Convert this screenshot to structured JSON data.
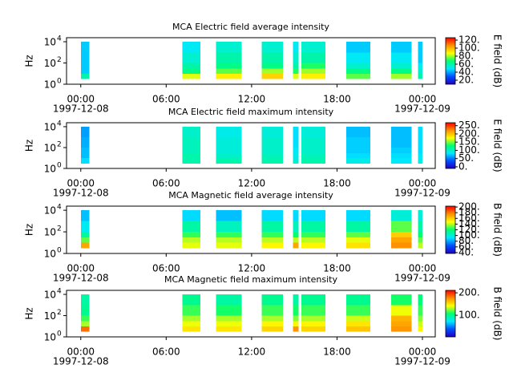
{
  "chart_data": [
    {
      "type": "spectrogram",
      "title": "MCA  Electric field average intensity",
      "ylabel": "Hz",
      "clabel": "E field (dB)",
      "xlim": [
        -1,
        24.9
      ],
      "xticks": [
        {
          "value": 0,
          "label": "00:00",
          "date": "1997-12-08"
        },
        {
          "value": 6,
          "label": "06:00"
        },
        {
          "value": 12,
          "label": "12:00"
        },
        {
          "value": 18,
          "label": "18:00"
        },
        {
          "value": 24,
          "label": "00:00",
          "date": "1997-12-09"
        }
      ],
      "ylim": [
        1,
        24000
      ],
      "log_y": true,
      "yticks": [
        {
          "value": 1,
          "label": "10",
          "exp": "0"
        },
        {
          "value": 100,
          "label": "10",
          "exp": "2"
        },
        {
          "value": 10000,
          "label": "10",
          "exp": "4"
        }
      ],
      "clim": [
        10,
        126
      ],
      "cticks": [
        {
          "value": 20,
          "label": "20."
        },
        {
          "value": 40,
          "label": "40."
        },
        {
          "value": 60,
          "label": "60."
        },
        {
          "value": 80,
          "label": "80."
        },
        {
          "value": 100,
          "label": "100."
        },
        {
          "value": 120,
          "label": "120."
        }
      ],
      "colormap": [
        "#2000c0",
        "#0050ff",
        "#00e8ff",
        "#00ff70",
        "#ffff00",
        "#ff9000",
        "#ff0000"
      ],
      "time_bins": [
        [
          0,
          0.6
        ],
        [
          7.15,
          8.4
        ],
        [
          9.5,
          11.3
        ],
        [
          12.7,
          14.2
        ],
        [
          14.9,
          15.3
        ],
        [
          15.5,
          17.2
        ],
        [
          18.65,
          20.35
        ],
        [
          21.8,
          23.25
        ],
        [
          23.7,
          24
        ]
      ],
      "freq_bins": [
        3,
        10,
        30,
        100,
        1000,
        10000
      ],
      "z": [
        [
          60,
          45,
          45,
          45,
          45
        ],
        [
          85,
          65,
          60,
          55,
          50
        ],
        [
          90,
          75,
          65,
          60,
          55
        ],
        [
          95,
          80,
          65,
          60,
          55
        ],
        [
          85,
          70,
          60,
          55,
          50
        ],
        [
          90,
          80,
          70,
          60,
          55
        ],
        [
          75,
          65,
          55,
          50,
          45
        ],
        [
          80,
          65,
          55,
          50,
          45
        ],
        [
          60,
          55,
          50,
          45,
          45
        ]
      ]
    },
    {
      "type": "spectrogram",
      "title": "MCA  Electric field maximum intensity",
      "ylabel": "Hz",
      "clabel": "E field (dB)",
      "xlim": [
        -1,
        24.9
      ],
      "xticks": [
        {
          "value": 0,
          "label": "00:00",
          "date": "1997-12-08"
        },
        {
          "value": 6,
          "label": "06:00"
        },
        {
          "value": 12,
          "label": "12:00"
        },
        {
          "value": 18,
          "label": "18:00"
        },
        {
          "value": 24,
          "label": "00:00",
          "date": "1997-12-09"
        }
      ],
      "ylim": [
        1,
        24000
      ],
      "log_y": true,
      "yticks": [
        {
          "value": 1,
          "label": "10",
          "exp": "0"
        },
        {
          "value": 100,
          "label": "10",
          "exp": "2"
        },
        {
          "value": 10000,
          "label": "10",
          "exp": "4"
        }
      ],
      "clim": [
        -10,
        268
      ],
      "cticks": [
        {
          "value": 0,
          "label": "0."
        },
        {
          "value": 50,
          "label": "50."
        },
        {
          "value": 100,
          "label": "100."
        },
        {
          "value": 150,
          "label": "150."
        },
        {
          "value": 200,
          "label": "200."
        },
        {
          "value": 250,
          "label": "250."
        }
      ],
      "colormap": [
        "#2000c0",
        "#0050ff",
        "#00e8ff",
        "#00ff70",
        "#ffff00",
        "#ff9000",
        "#ff0000"
      ],
      "time_bins": [
        [
          0,
          0.6
        ],
        [
          7.15,
          8.4
        ],
        [
          9.5,
          11.3
        ],
        [
          12.7,
          14.2
        ],
        [
          14.9,
          15.3
        ],
        [
          15.5,
          17.2
        ],
        [
          18.65,
          20.35
        ],
        [
          21.8,
          23.25
        ],
        [
          23.7,
          24
        ]
      ],
      "freq_bins": [
        3,
        10,
        30,
        100,
        1000,
        10000
      ],
      "z": [
        [
          80,
          70,
          70,
          65,
          60
        ],
        [
          110,
          110,
          105,
          105,
          100
        ],
        [
          110,
          100,
          95,
          95,
          90
        ],
        [
          110,
          105,
          100,
          100,
          95
        ],
        [
          95,
          90,
          85,
          80,
          80
        ],
        [
          110,
          105,
          100,
          100,
          95
        ],
        [
          90,
          80,
          75,
          75,
          70
        ],
        [
          85,
          80,
          75,
          70,
          70
        ],
        [
          90,
          85,
          80,
          80,
          80
        ]
      ]
    },
    {
      "type": "spectrogram",
      "title": "MCA  Magnetic field average intensity",
      "ylabel": "Hz",
      "clabel": "B field (dB)",
      "xlim": [
        -1,
        24.9
      ],
      "xticks": [
        {
          "value": 0,
          "label": "00:00",
          "date": "1997-12-08"
        },
        {
          "value": 6,
          "label": "06:00"
        },
        {
          "value": 12,
          "label": "12:00"
        },
        {
          "value": 18,
          "label": "18:00"
        },
        {
          "value": 24,
          "label": "00:00",
          "date": "1997-12-09"
        }
      ],
      "ylim": [
        1,
        24000
      ],
      "log_y": true,
      "yticks": [
        {
          "value": 1,
          "label": "10",
          "exp": "0"
        },
        {
          "value": 100,
          "label": "10",
          "exp": "2"
        },
        {
          "value": 10000,
          "label": "10",
          "exp": "4"
        }
      ],
      "clim": [
        37,
        203
      ],
      "cticks": [
        {
          "value": 40,
          "label": "40."
        },
        {
          "value": 60,
          "label": "60."
        },
        {
          "value": 80,
          "label": "80."
        },
        {
          "value": 100,
          "label": "100."
        },
        {
          "value": 120,
          "label": "120."
        },
        {
          "value": 140,
          "label": "140."
        },
        {
          "value": 160,
          "label": "160."
        },
        {
          "value": 180,
          "label": "180."
        },
        {
          "value": 200,
          "label": "200."
        }
      ],
      "colormap": [
        "#2000c0",
        "#0050ff",
        "#00e8ff",
        "#00ff70",
        "#ffff00",
        "#ff9000",
        "#ff0000"
      ],
      "time_bins": [
        [
          0,
          0.6
        ],
        [
          7.15,
          8.4
        ],
        [
          9.5,
          11.3
        ],
        [
          12.7,
          14.2
        ],
        [
          14.9,
          15.3
        ],
        [
          15.5,
          17.2
        ],
        [
          18.65,
          20.35
        ],
        [
          21.8,
          23.25
        ],
        [
          23.7,
          24
        ]
      ],
      "freq_bins": [
        3,
        10,
        30,
        100,
        1000,
        10000
      ],
      "z": [
        [
          170,
          130,
          110,
          95,
          85
        ],
        [
          145,
          140,
          125,
          110,
          90
        ],
        [
          145,
          140,
          125,
          105,
          85
        ],
        [
          150,
          140,
          125,
          110,
          90
        ],
        [
          170,
          140,
          120,
          105,
          90
        ],
        [
          150,
          140,
          125,
          110,
          90
        ],
        [
          155,
          145,
          130,
          110,
          90
        ],
        [
          175,
          170,
          160,
          130,
          100
        ],
        [
          140,
          130,
          120,
          110,
          100
        ]
      ]
    },
    {
      "type": "spectrogram",
      "title": "MCA  Magnetic field maximum intensity",
      "ylabel": "Hz",
      "clabel": "B field (dB)",
      "xlim": [
        -1,
        24.9
      ],
      "xticks": [
        {
          "value": 0,
          "label": "00:00",
          "date": "1997-12-08"
        },
        {
          "value": 6,
          "label": "06:00"
        },
        {
          "value": 12,
          "label": "12:00"
        },
        {
          "value": 18,
          "label": "18:00"
        },
        {
          "value": 24,
          "label": "00:00",
          "date": "1997-12-09"
        }
      ],
      "ylim": [
        1,
        24000
      ],
      "log_y": true,
      "yticks": [
        {
          "value": 1,
          "label": "10",
          "exp": "0"
        },
        {
          "value": 100,
          "label": "10",
          "exp": "2"
        },
        {
          "value": 10000,
          "label": "10",
          "exp": "4"
        }
      ],
      "clim": [
        4,
        211
      ],
      "cticks": [
        {
          "value": 100,
          "label": "100."
        },
        {
          "value": 200,
          "label": "200."
        }
      ],
      "colormap": [
        "#2000c0",
        "#0050ff",
        "#00e8ff",
        "#00ff70",
        "#ffff00",
        "#ff9000",
        "#ff0000"
      ],
      "time_bins": [
        [
          0,
          0.6
        ],
        [
          7.15,
          8.4
        ],
        [
          9.5,
          11.3
        ],
        [
          12.7,
          14.2
        ],
        [
          14.9,
          15.3
        ],
        [
          15.5,
          17.2
        ],
        [
          18.65,
          20.35
        ],
        [
          21.8,
          23.25
        ],
        [
          23.7,
          24
        ]
      ],
      "freq_bins": [
        3,
        10,
        30,
        100,
        1000,
        10000
      ],
      "z": [
        [
          185,
          130,
          115,
          100,
          95
        ],
        [
          150,
          140,
          130,
          115,
          100
        ],
        [
          150,
          140,
          130,
          110,
          95
        ],
        [
          155,
          145,
          130,
          115,
          100
        ],
        [
          175,
          145,
          125,
          110,
          95
        ],
        [
          155,
          145,
          130,
          115,
          100
        ],
        [
          160,
          150,
          135,
          115,
          100
        ],
        [
          175,
          170,
          165,
          140,
          110
        ],
        [
          145,
          135,
          125,
          115,
          105
        ]
      ]
    }
  ]
}
